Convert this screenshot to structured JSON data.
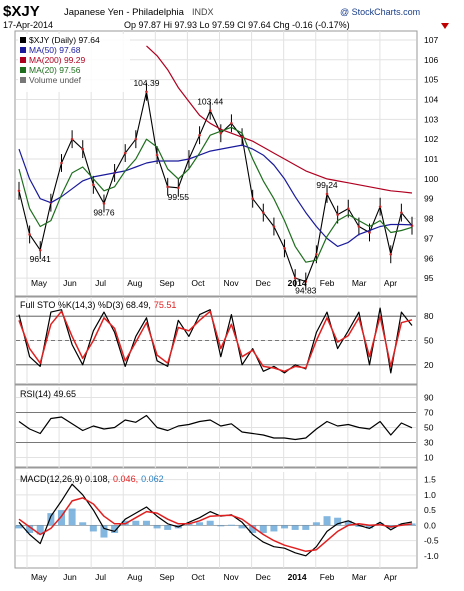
{
  "header": {
    "symbol": "$XJY",
    "name": "Japanese Yen - Philadelphia",
    "exchange": "INDX",
    "date": "17-Apr-2014",
    "quote": "Op 97.87  Hi 97.93  Lo 97.59  Cl 97.64  Chg -0.16 (-0.17%)",
    "chg_icon": "down-triangle-icon",
    "watermark": "@ StockCharts.com"
  },
  "legend": {
    "price": "$XJY (Daily) 97.64",
    "ma50": "MA(50) 97.68",
    "ma200": "MA(200) 99.29",
    "ma20": "MA(20) 97.56",
    "volume": "Volume undef"
  },
  "panel_labels": {
    "sto": "Full STO %K(14,3) %D(3) 68.49, 75.51",
    "sto_prefix": "Full STO %K(14,3) %D(3) 68.49,",
    "sto_d_value": "75.51",
    "rsi": "RSI(14) 49.65",
    "macd_prefix": "MACD(12,26,9) 0.108,",
    "macd_signal_value": "0.046,",
    "macd_hist_value": "0.062"
  },
  "colors": {
    "price": "#000000",
    "ma50": "#1a1a9c",
    "ma200": "#b00020",
    "ma20": "#1e6e1e",
    "sto_k": "#000000",
    "sto_d": "#e02020",
    "rsi": "#000000",
    "macd": "#000000",
    "macd_signal": "#e02020",
    "macd_hist": "#5a9fd4",
    "grid": "#e2e2e2",
    "border": "#9a9a9a"
  },
  "chart_data": [
    {
      "type": "line",
      "panel": "price",
      "x_tick_labels": [
        "May",
        "Jun",
        "Jul",
        "Aug",
        "Sep",
        "Oct",
        "Nov",
        "Dec",
        "2014",
        "Feb",
        "Mar",
        "Apr"
      ],
      "y_ticks": [
        95,
        96,
        97,
        98,
        99,
        100,
        101,
        102,
        103,
        104,
        105,
        106,
        107
      ],
      "ylim": [
        94.3,
        107.3
      ],
      "series": [
        {
          "name": "$XJY (Daily)",
          "values": [
            99.4,
            97.2,
            96.41,
            98.8,
            100.8,
            102.0,
            101.5,
            99.7,
            98.76,
            100.3,
            101.3,
            102.0,
            104.39,
            101.2,
            99.6,
            99.55,
            101.0,
            102.2,
            103.44,
            102.3,
            102.8,
            102.1,
            99.0,
            98.3,
            97.6,
            96.5,
            95.0,
            94.83,
            96.2,
            99.24,
            98.2,
            98.5,
            97.6,
            97.3,
            98.6,
            96.2,
            98.3,
            97.64
          ]
        },
        {
          "name": "MA(50)",
          "values": [
            101.5,
            100.0,
            99.0,
            98.8,
            99.1,
            99.5,
            99.9,
            100.1,
            100.2,
            100.3,
            100.4,
            100.6,
            100.8,
            100.9,
            100.9,
            100.9,
            101.0,
            101.2,
            101.4,
            101.5,
            101.6,
            101.7,
            101.5,
            101.2,
            100.7,
            100.0,
            99.1,
            98.3,
            97.6,
            97.0,
            96.6,
            96.8,
            97.2,
            97.4,
            97.6,
            97.7,
            97.7,
            97.68
          ]
        },
        {
          "name": "MA(200)",
          "values": [
            null,
            null,
            null,
            null,
            null,
            null,
            null,
            null,
            null,
            null,
            null,
            null,
            106.7,
            106.2,
            105.5,
            104.6,
            103.9,
            103.2,
            102.8,
            102.5,
            102.3,
            102.1,
            101.9,
            101.6,
            101.3,
            101.0,
            100.7,
            100.4,
            100.2,
            100.0,
            99.9,
            99.8,
            99.7,
            99.6,
            99.5,
            99.4,
            99.35,
            99.29
          ]
        },
        {
          "name": "MA(20)",
          "values": [
            100.5,
            98.5,
            97.6,
            97.9,
            99.2,
            100.3,
            100.6,
            100.0,
            99.4,
            99.6,
            100.4,
            101.0,
            102.0,
            101.6,
            100.5,
            100.0,
            100.5,
            101.3,
            102.2,
            102.4,
            102.6,
            102.3,
            101.0,
            99.9,
            99.0,
            97.9,
            96.6,
            95.8,
            95.9,
            97.1,
            97.9,
            98.2,
            97.9,
            97.6,
            97.9,
            97.3,
            97.4,
            97.56
          ]
        }
      ],
      "annotations": [
        {
          "label": "104.39",
          "x_index": 12,
          "value": 104.39,
          "position": "above"
        },
        {
          "label": "103.44",
          "x_index": 18,
          "value": 103.44,
          "position": "above"
        },
        {
          "label": "99.55",
          "x_index": 15,
          "value": 99.55,
          "position": "below"
        },
        {
          "label": "98.76",
          "x_index": 8,
          "value": 98.76,
          "position": "below"
        },
        {
          "label": "96.41",
          "x_index": 2,
          "value": 96.41,
          "position": "below"
        },
        {
          "label": "94.83",
          "x_index": 27,
          "value": 94.83,
          "position": "below"
        },
        {
          "label": "99.24",
          "x_index": 29,
          "value": 99.24,
          "position": "above"
        }
      ]
    },
    {
      "type": "line",
      "panel": "full-sto",
      "y_ticks": [
        20,
        50,
        80
      ],
      "ylim": [
        0,
        100
      ],
      "reference_lines": [
        20,
        50,
        80
      ],
      "series": [
        {
          "name": "%K",
          "values": [
            82,
            30,
            18,
            85,
            88,
            45,
            20,
            62,
            85,
            60,
            18,
            55,
            78,
            25,
            18,
            75,
            55,
            82,
            88,
            30,
            82,
            20,
            40,
            12,
            18,
            10,
            20,
            15,
            60,
            85,
            40,
            62,
            85,
            20,
            90,
            10,
            85,
            68.49
          ]
        },
        {
          "name": "%D",
          "values": [
            75,
            40,
            22,
            70,
            86,
            55,
            28,
            50,
            78,
            65,
            25,
            48,
            72,
            32,
            22,
            66,
            62,
            75,
            86,
            40,
            70,
            30,
            38,
            18,
            16,
            12,
            18,
            16,
            50,
            78,
            48,
            56,
            78,
            30,
            80,
            18,
            72,
            75.51
          ]
        }
      ]
    },
    {
      "type": "line",
      "panel": "rsi",
      "y_ticks": [
        10,
        30,
        50,
        70,
        90
      ],
      "ylim": [
        0,
        100
      ],
      "reference_lines": [
        30,
        70
      ],
      "series": [
        {
          "name": "RSI(14)",
          "values": [
            58,
            48,
            42,
            62,
            64,
            55,
            46,
            52,
            48,
            50,
            60,
            57,
            66,
            50,
            46,
            52,
            54,
            58,
            60,
            52,
            55,
            44,
            42,
            40,
            36,
            36,
            34,
            36,
            48,
            58,
            52,
            54,
            50,
            48,
            58,
            40,
            56,
            49.65
          ]
        }
      ]
    },
    {
      "type": "line",
      "panel": "macd",
      "y_ticks": [
        -1.0,
        -0.5,
        0.0,
        0.5,
        1.0,
        1.5
      ],
      "ylim": [
        -1.3,
        1.65
      ],
      "series": [
        {
          "name": "MACD",
          "values": [
            0.1,
            -0.3,
            -0.6,
            0.3,
            0.8,
            1.35,
            1.0,
            0.5,
            -0.1,
            -0.2,
            0.2,
            0.4,
            0.6,
            0.3,
            0.05,
            -0.05,
            0.1,
            0.25,
            0.45,
            0.3,
            0.35,
            0.1,
            -0.3,
            -0.55,
            -0.7,
            -0.75,
            -0.9,
            -1.0,
            -0.7,
            -0.2,
            0.05,
            0.15,
            0.0,
            -0.1,
            0.1,
            -0.15,
            0.05,
            0.108
          ]
        },
        {
          "name": "Signal",
          "values": [
            0.2,
            -0.05,
            -0.3,
            -0.1,
            0.3,
            0.8,
            0.9,
            0.7,
            0.3,
            0.05,
            0.05,
            0.25,
            0.45,
            0.4,
            0.2,
            0.05,
            0.05,
            0.15,
            0.3,
            0.32,
            0.33,
            0.2,
            -0.05,
            -0.3,
            -0.5,
            -0.65,
            -0.75,
            -0.85,
            -0.8,
            -0.5,
            -0.2,
            0.0,
            0.05,
            0.0,
            0.02,
            -0.05,
            0.0,
            0.046
          ]
        }
      ]
    }
  ]
}
